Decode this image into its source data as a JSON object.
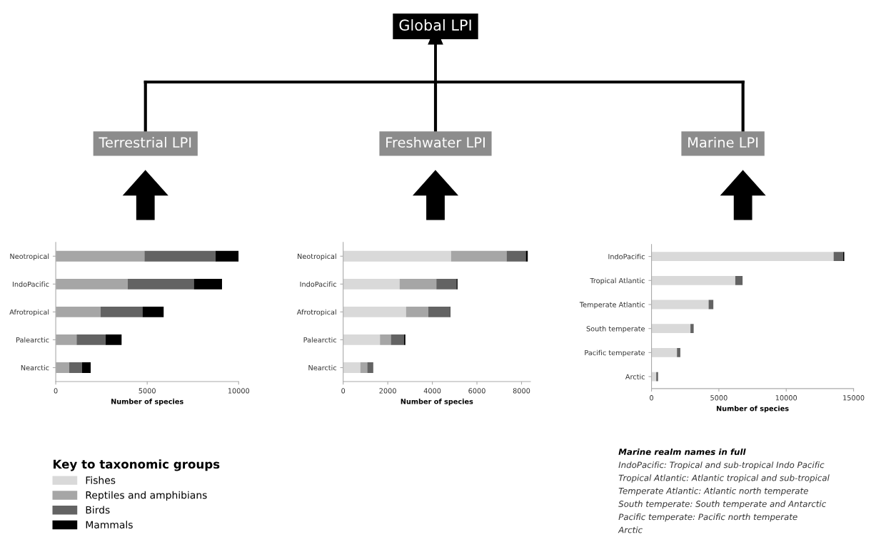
{
  "chart_data": [
    {
      "type": "other",
      "title": "Global LPI"
    },
    {
      "type": "bar",
      "orientation": "horizontal",
      "stacked": true,
      "title": "Terrestrial LPI",
      "xlabel": "Number of species",
      "categories": [
        "Neotropical",
        "IndoPacific",
        "Afrotropical",
        "Palearctic",
        "Nearctic"
      ],
      "xlim": [
        0,
        10000
      ],
      "xticks": [
        0,
        5000,
        10000
      ],
      "series": [
        {
          "color": "#a6a6a6",
          "values": [
            4850,
            3930,
            2450,
            1140,
            730
          ]
        },
        {
          "color": "#636363",
          "values": [
            3880,
            3620,
            2290,
            1580,
            710
          ]
        },
        {
          "color": "#000000",
          "values": [
            1270,
            1540,
            1160,
            880,
            470
          ]
        }
      ]
    },
    {
      "type": "bar",
      "orientation": "horizontal",
      "stacked": true,
      "title": "Freshwater LPI",
      "xlabel": "Number of species",
      "categories": [
        "Neotropical",
        "IndoPacific",
        "Afrotropical",
        "Palearctic",
        "Nearctic"
      ],
      "xlim": [
        0,
        8400
      ],
      "xticks": [
        0,
        2000,
        4000,
        6000,
        8000
      ],
      "legend": "bottom left",
      "legend_title": "Key to taxonomic groups",
      "series": [
        {
          "name": "Fishes",
          "color": "#d9d9d9",
          "values": [
            4840,
            2530,
            2820,
            1650,
            770
          ]
        },
        {
          "name": "Reptiles and amphibians",
          "color": "#a6a6a6",
          "values": [
            2490,
            1650,
            1000,
            490,
            310
          ]
        },
        {
          "name": "Birds",
          "color": "#636363",
          "values": [
            860,
            900,
            970,
            580,
            270
          ]
        },
        {
          "name": "Mammals",
          "color": "#000000",
          "values": [
            90,
            50,
            20,
            70,
            0
          ]
        }
      ]
    },
    {
      "type": "bar",
      "orientation": "horizontal",
      "stacked": true,
      "title": "Marine LPI",
      "xlabel": "Number of species",
      "categories": [
        "IndoPacific",
        "Tropical Atlantic",
        "Temperate Atlantic",
        "South temperate",
        "Pacific temperate",
        "Arctic"
      ],
      "xlim": [
        0,
        15000
      ],
      "xticks": [
        0,
        5000,
        10000,
        15000
      ],
      "series": [
        {
          "color": "#d9d9d9",
          "values": [
            13520,
            6220,
            4240,
            2890,
            1890,
            350
          ]
        },
        {
          "color": "#636363",
          "values": [
            700,
            540,
            350,
            240,
            250,
            140
          ]
        },
        {
          "color": "#000000",
          "values": [
            90,
            0,
            0,
            0,
            0,
            0
          ]
        }
      ],
      "annotations": [
        "Marine realm names in full",
        "IndoPacific: Tropical and sub-tropical Indo Pacific",
        "Tropical Atlantic: Atlantic tropical and sub-tropical",
        "Temperate Atlantic: Atlantic north temperate",
        "South temperate: South temperate and Antarctic",
        "Pacific temperate: Pacific north temperate",
        "Arctic"
      ]
    }
  ]
}
